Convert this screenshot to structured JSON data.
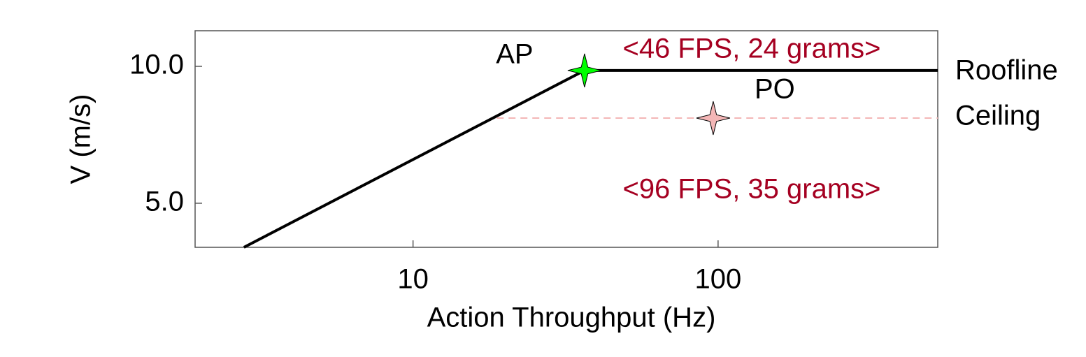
{
  "chart_data": {
    "type": "line",
    "xlabel": "Action Throughput (Hz)",
    "ylabel": "V (m/s)",
    "xscale": "log",
    "xlim": [
      1.93,
      525
    ],
    "ylim": [
      3.39,
      11.3
    ],
    "xticks": [
      10,
      100
    ],
    "yticks": [
      {
        "value": 5,
        "label": "5.0"
      },
      {
        "value": 10,
        "label": "10.0"
      }
    ],
    "series": [
      {
        "name": "Roofline",
        "color": "#000000",
        "dash": false,
        "x": [
          2.79,
          36.5,
          525
        ],
        "values": [
          3.39,
          9.85,
          9.85
        ]
      },
      {
        "name": "Ceiling",
        "color": "#f4b6b6",
        "dash": true,
        "x": [
          18.8,
          525
        ],
        "values": [
          8.11,
          8.11
        ]
      }
    ],
    "points": [
      {
        "name": "AP",
        "x": 36.5,
        "y": 9.85,
        "color": "#00ff00"
      },
      {
        "name": "PO",
        "x": 96.4,
        "y": 8.11,
        "color": "#f4b6b6"
      }
    ],
    "annotations": [
      {
        "text": "<46 FPS, 24 grams>",
        "color": "#a50021"
      },
      {
        "text": "<96 FPS, 35 grams>",
        "color": "#a50021"
      }
    ]
  }
}
